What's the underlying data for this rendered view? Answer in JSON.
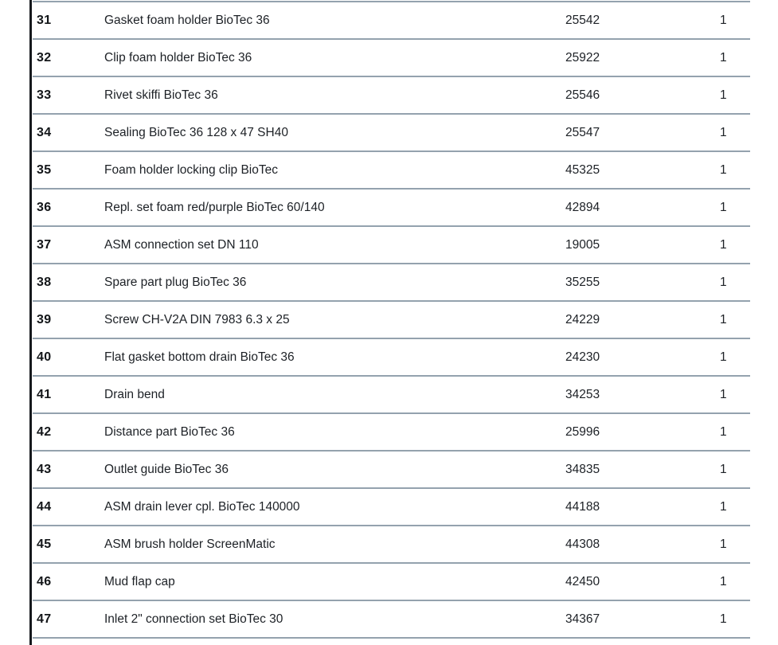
{
  "page": {
    "background_color": "#ffffff"
  },
  "table": {
    "left_border_color": "#16191d",
    "separator_color": "#94a2ae",
    "rows": [
      {
        "no": "31",
        "description": "Gasket foam holder BioTec 36",
        "part_no": "25542",
        "qty": "1"
      },
      {
        "no": "32",
        "description": "Clip foam holder BioTec 36",
        "part_no": "25922",
        "qty": "1"
      },
      {
        "no": "33",
        "description": "Rivet skiffi BioTec 36",
        "part_no": "25546",
        "qty": "1"
      },
      {
        "no": "34",
        "description": "Sealing BioTec 36 128 x 47 SH40",
        "part_no": "25547",
        "qty": "1"
      },
      {
        "no": "35",
        "description": "Foam holder locking clip BioTec",
        "part_no": "45325",
        "qty": "1"
      },
      {
        "no": "36",
        "description": "Repl. set foam red/purple BioTec 60/140",
        "part_no": "42894",
        "qty": "1"
      },
      {
        "no": "37",
        "description": "ASM connection set DN 110",
        "part_no": "19005",
        "qty": "1"
      },
      {
        "no": "38",
        "description": "Spare part plug BioTec 36",
        "part_no": "35255",
        "qty": "1"
      },
      {
        "no": "39",
        "description": "Screw CH-V2A DIN 7983 6.3 x 25",
        "part_no": "24229",
        "qty": "1"
      },
      {
        "no": "40",
        "description": "Flat gasket bottom drain BioTec 36",
        "part_no": "24230",
        "qty": "1"
      },
      {
        "no": "41",
        "description": "Drain bend",
        "part_no": "34253",
        "qty": "1"
      },
      {
        "no": "42",
        "description": "Distance part BioTec 36",
        "part_no": "25996",
        "qty": "1"
      },
      {
        "no": "43",
        "description": "Outlet guide BioTec 36",
        "part_no": "34835",
        "qty": "1"
      },
      {
        "no": "44",
        "description": "ASM drain lever cpl. BioTec 140000",
        "part_no": "44188",
        "qty": "1"
      },
      {
        "no": "45",
        "description": "ASM brush holder ScreenMatic",
        "part_no": "44308",
        "qty": "1"
      },
      {
        "no": "46",
        "description": "Mud flap cap",
        "part_no": "42450",
        "qty": "1"
      },
      {
        "no": "47",
        "description": "Inlet 2\" connection set BioTec 30",
        "part_no": "34367",
        "qty": "1"
      }
    ]
  }
}
